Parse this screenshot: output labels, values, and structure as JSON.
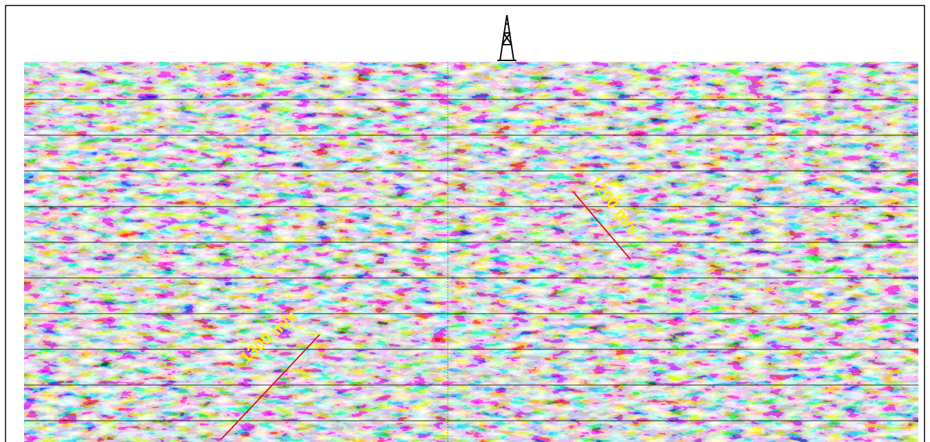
{
  "annotations": [
    {
      "text": "1300 m/s"
    },
    {
      "text": "1200 m/s"
    }
  ]
}
